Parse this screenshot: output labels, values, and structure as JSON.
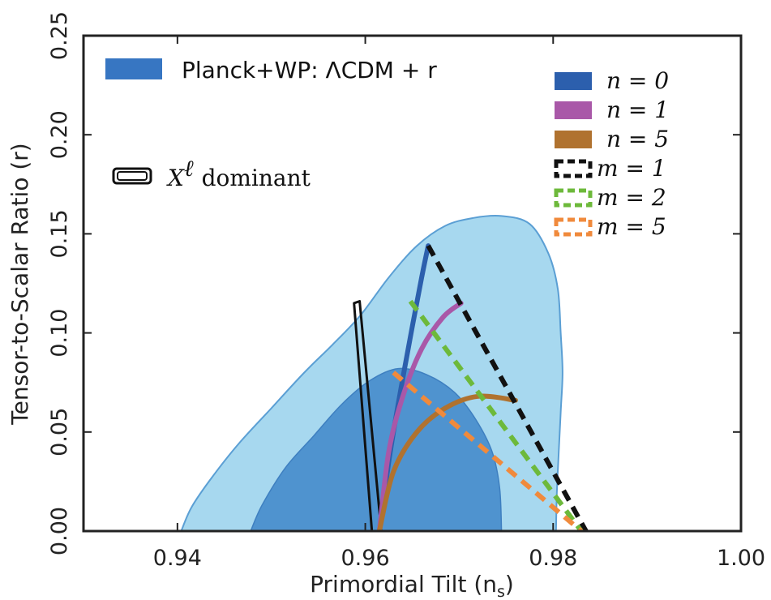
{
  "chart_data": {
    "type": "area",
    "title": "",
    "xlabel": "Primordial Tilt (n",
    "xlabel_sub": "s",
    "xlabel_tail": ")",
    "ylabel": "Tensor-to-Scalar Ratio (r)",
    "xlim": [
      0.93,
      1.0
    ],
    "ylim": [
      0.0,
      0.25
    ],
    "x_ticks": [
      "0.94",
      "0.96",
      "0.98",
      "1.00"
    ],
    "y_ticks": [
      "0.00",
      "0.05",
      "0.10",
      "0.15",
      "0.20",
      "0.25"
    ],
    "legend_left": {
      "planck": "Planck+WP: ΛCDM + r",
      "xell_symbol": "X",
      "xell_sup": "ℓ",
      "xell_rest": "dominant"
    },
    "legend_right": [
      {
        "label": "n = 0",
        "color": "#2c5fad",
        "style": "solid"
      },
      {
        "label": "n = 1",
        "color": "#a958a8",
        "style": "solid"
      },
      {
        "label": "n = 5",
        "color": "#b0722f",
        "style": "solid"
      },
      {
        "label": "m = 1",
        "color": "#111111",
        "style": "dashed"
      },
      {
        "label": "m = 2",
        "color": "#6db93b",
        "style": "dashed"
      },
      {
        "label": "m = 5",
        "color": "#f08a3c",
        "style": "dashed"
      }
    ],
    "colors": {
      "contour_outer": "#a7d8ef",
      "contour_outer_edge": "#5b9fd4",
      "contour_inner": "#4f93cf",
      "contour_inner_edge": "#3e7fc0",
      "planck_legend": "#3776c2"
    },
    "contour_95": [
      [
        0.9404,
        0.0
      ],
      [
        0.9415,
        0.012
      ],
      [
        0.9435,
        0.026
      ],
      [
        0.9465,
        0.044
      ],
      [
        0.95,
        0.062
      ],
      [
        0.9535,
        0.08
      ],
      [
        0.9565,
        0.094
      ],
      [
        0.9595,
        0.109
      ],
      [
        0.9625,
        0.128
      ],
      [
        0.9655,
        0.144
      ],
      [
        0.9685,
        0.154
      ],
      [
        0.9715,
        0.158
      ],
      [
        0.9745,
        0.159
      ],
      [
        0.9775,
        0.155
      ],
      [
        0.9795,
        0.14
      ],
      [
        0.9805,
        0.122
      ],
      [
        0.9808,
        0.1
      ],
      [
        0.981,
        0.08
      ],
      [
        0.9808,
        0.06
      ],
      [
        0.9806,
        0.04
      ],
      [
        0.9804,
        0.02
      ],
      [
        0.9803,
        0.0
      ]
    ],
    "contour_68": [
      [
        0.9478,
        0.0
      ],
      [
        0.949,
        0.013
      ],
      [
        0.9515,
        0.032
      ],
      [
        0.9545,
        0.048
      ],
      [
        0.9575,
        0.064
      ],
      [
        0.9605,
        0.076
      ],
      [
        0.9635,
        0.082
      ],
      [
        0.9665,
        0.079
      ],
      [
        0.9695,
        0.07
      ],
      [
        0.9718,
        0.056
      ],
      [
        0.9735,
        0.04
      ],
      [
        0.9743,
        0.022
      ],
      [
        0.9745,
        0.0
      ]
    ],
    "series": [
      {
        "name": "n = 0",
        "x": [
          0.9615,
          0.9625,
          0.9635,
          0.9648,
          0.966,
          0.9667
        ],
        "y": [
          0.0,
          0.035,
          0.064,
          0.098,
          0.128,
          0.144
        ]
      },
      {
        "name": "n = 1",
        "x": [
          0.9615,
          0.9625,
          0.964,
          0.966,
          0.9683,
          0.9702
        ],
        "y": [
          0.0,
          0.04,
          0.068,
          0.092,
          0.108,
          0.115
        ]
      },
      {
        "name": "n = 5",
        "x": [
          0.9615,
          0.963,
          0.9655,
          0.9685,
          0.972,
          0.976
        ],
        "y": [
          0.0,
          0.03,
          0.05,
          0.062,
          0.068,
          0.066
        ]
      },
      {
        "name": "m = 1",
        "x": [
          0.9667,
          0.9835
        ],
        "y": [
          0.144,
          0.0
        ]
      },
      {
        "name": "m = 2",
        "x": [
          0.9648,
          0.983
        ],
        "y": [
          0.116,
          0.0
        ]
      },
      {
        "name": "m = 5",
        "x": [
          0.963,
          0.983
        ],
        "y": [
          0.08,
          0.0
        ]
      }
    ],
    "xell_region": [
      [
        0.9588,
        0.115
      ],
      [
        0.9607,
        0.0
      ],
      [
        0.9617,
        0.0
      ],
      [
        0.9594,
        0.116
      ]
    ]
  }
}
